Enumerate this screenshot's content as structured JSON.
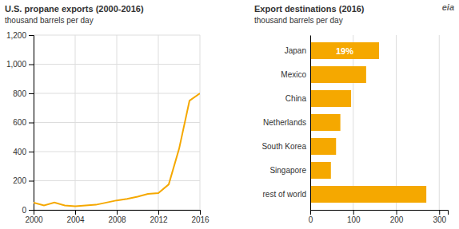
{
  "chart_data": [
    {
      "type": "line",
      "title": "U.S. propane exports (2000-2016)",
      "subtitle": "thousand barrels per day",
      "x": [
        2000,
        2001,
        2002,
        2003,
        2004,
        2005,
        2006,
        2007,
        2008,
        2009,
        2010,
        2011,
        2012,
        2013,
        2014,
        2015,
        2016
      ],
      "values": [
        50,
        30,
        50,
        30,
        25,
        30,
        35,
        50,
        65,
        75,
        90,
        110,
        115,
        175,
        420,
        750,
        800
      ],
      "color": "#F5A800",
      "xlim": [
        2000,
        2016
      ],
      "xticks": [
        2000,
        2004,
        2008,
        2012,
        2016
      ],
      "ylim": [
        0,
        1200
      ],
      "yticks": [
        0,
        200,
        400,
        600,
        800,
        {
          "value": 1000,
          "label": "1,000"
        },
        {
          "value": 1200,
          "label": "1,200"
        }
      ],
      "grid": true
    },
    {
      "type": "bar",
      "orientation": "horizontal",
      "title": "Export destinations (2016)",
      "subtitle": "thousand barrels per day",
      "categories": [
        "Japan",
        "Mexico",
        "China",
        "Netherlands",
        "South Korea",
        "Singapore",
        "rest of world"
      ],
      "values": [
        160,
        130,
        95,
        70,
        60,
        48,
        270
      ],
      "color": "#F5A800",
      "xlim": [
        0,
        320
      ],
      "xticks": [
        0,
        100,
        200,
        300
      ],
      "grid": "x",
      "annotations": [
        {
          "text": "19%",
          "category": "Japan"
        },
        {
          "text": "eia"
        }
      ]
    }
  ]
}
